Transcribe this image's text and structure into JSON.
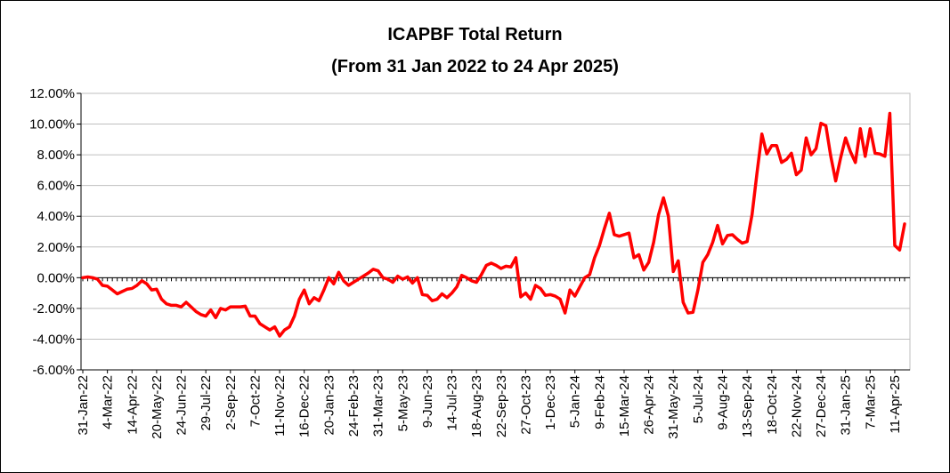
{
  "chart_data": {
    "type": "line",
    "title": "ICAPBF Total Return",
    "subtitle": "(From 31 Jan 2022 to 24 Apr 2025)",
    "xlabel": "",
    "ylabel": "",
    "ylim": [
      -6,
      12
    ],
    "y_ticks": [
      -6,
      -4,
      -2,
      0,
      2,
      4,
      6,
      8,
      10,
      12
    ],
    "y_tick_labels": [
      "-6.00%",
      "-4.00%",
      "-2.00%",
      "0.00%",
      "2.00%",
      "4.00%",
      "6.00%",
      "8.00%",
      "10.00%",
      "12.00%"
    ],
    "x_tick_labels": [
      "31-Jan-22",
      "4-Mar-22",
      "14-Apr-22",
      "20-May-22",
      "24-Jun-22",
      "29-Jul-22",
      "2-Sep-22",
      "7-Oct-22",
      "11-Nov-22",
      "16-Dec-22",
      "20-Jan-23",
      "24-Feb-23",
      "31-Mar-23",
      "5-May-23",
      "9-Jun-23",
      "14-Jul-23",
      "18-Aug-23",
      "22-Sep-23",
      "27-Oct-23",
      "1-Dec-23",
      "5-Jan-24",
      "9-Feb-24",
      "15-Mar-24",
      "26-Apr-24",
      "31-May-24",
      "5-Jul-24",
      "9-Aug-24",
      "13-Sep-24",
      "18-Oct-24",
      "22-Nov-24",
      "27-Dec-24",
      "31-Jan-25",
      "7-Mar-25",
      "11-Apr-25"
    ],
    "grid": true,
    "line_color": "#ff0000",
    "series": [
      {
        "values": [
          0.0,
          0.05,
          0.0,
          -0.1,
          -0.5,
          -0.55,
          -0.8,
          -1.05,
          -0.9,
          -0.75,
          -0.7,
          -0.5,
          -0.2,
          -0.4,
          -0.8,
          -0.75,
          -1.4,
          -1.7,
          -1.8,
          -1.8,
          -1.9,
          -1.6,
          -1.9,
          -2.2,
          -2.4,
          -2.5,
          -2.1,
          -2.6,
          -2.0,
          -2.1,
          -1.9,
          -1.9,
          -1.9,
          -1.85,
          -2.5,
          -2.5,
          -3.0,
          -3.2,
          -3.4,
          -3.2,
          -3.8,
          -3.4,
          -3.2,
          -2.5,
          -1.4,
          -0.8,
          -1.7,
          -1.3,
          -1.5,
          -0.8,
          0.0,
          -0.4,
          0.35,
          -0.2,
          -0.5,
          -0.3,
          -0.1,
          0.1,
          0.3,
          0.55,
          0.45,
          0.0,
          -0.1,
          -0.3,
          0.1,
          -0.1,
          0.05,
          -0.35,
          0.0,
          -1.1,
          -1.15,
          -1.5,
          -1.4,
          -1.05,
          -1.3,
          -1.0,
          -0.6,
          0.15,
          0.0,
          -0.2,
          -0.3,
          0.2,
          0.8,
          0.95,
          0.8,
          0.6,
          0.75,
          0.7,
          1.3,
          -1.25,
          -1.0,
          -1.4,
          -0.5,
          -0.7,
          -1.15,
          -1.1,
          -1.2,
          -1.4,
          -2.3,
          -0.8,
          -1.2,
          -0.6,
          0.0,
          0.2,
          1.3,
          2.1,
          3.2,
          4.2,
          2.8,
          2.7,
          2.8,
          2.9,
          1.3,
          1.5,
          0.5,
          1.0,
          2.3,
          4.1,
          5.2,
          4.0,
          0.4,
          1.1,
          -1.6,
          -2.3,
          -2.25,
          -0.8,
          1.0,
          1.5,
          2.3,
          3.4,
          2.2,
          2.75,
          2.8,
          2.5,
          2.25,
          2.35,
          4.1,
          6.8,
          9.35,
          8.05,
          8.6,
          8.6,
          7.5,
          7.7,
          8.1,
          6.7,
          7.0,
          9.1,
          8.0,
          8.4,
          10.05,
          9.9,
          7.9,
          6.3,
          7.8,
          9.1,
          8.2,
          7.5,
          9.7,
          7.9,
          9.7,
          8.1,
          8.05,
          7.9,
          10.7,
          2.1,
          1.8,
          3.5
        ]
      }
    ]
  }
}
